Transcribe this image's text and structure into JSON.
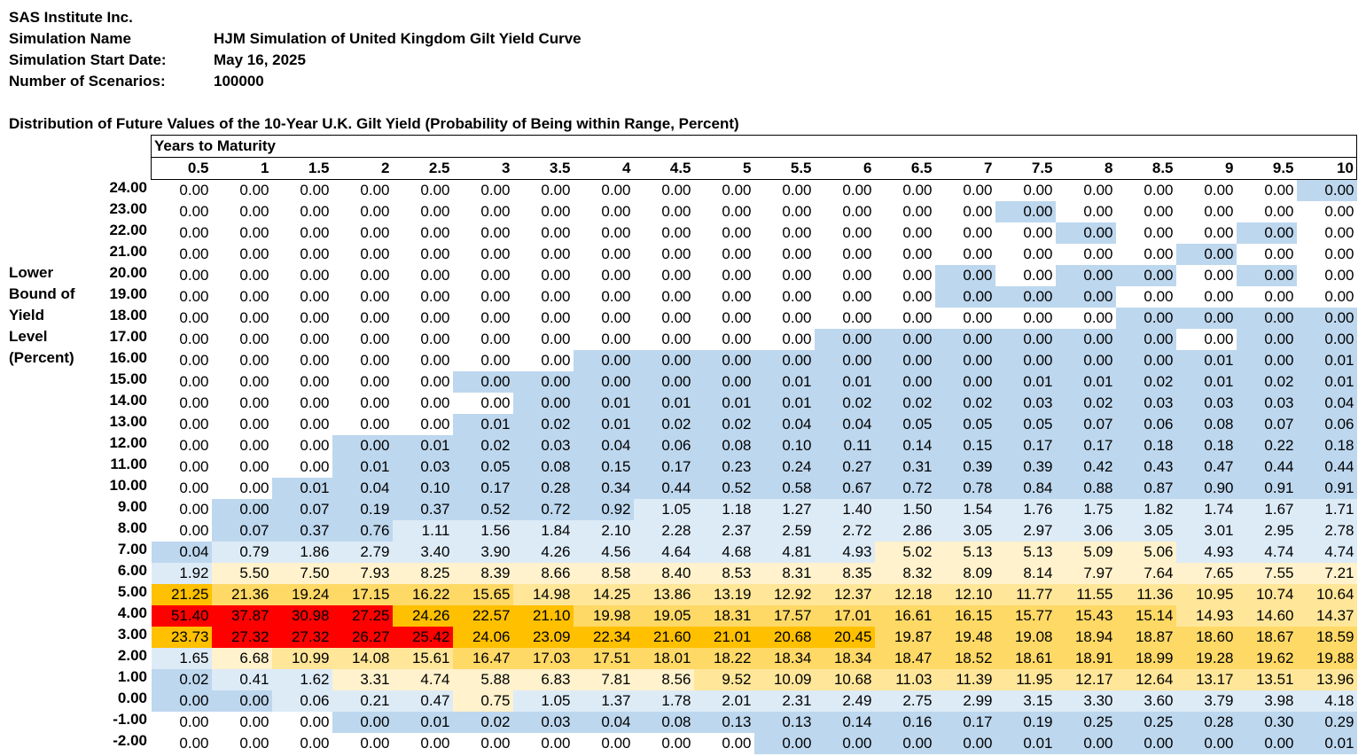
{
  "header": {
    "company": "SAS Institute Inc.",
    "sim_name_label": "Simulation Name",
    "sim_name_value": "HJM Simulation of United Kingdom Gilt Yield Curve",
    "start_label": "Simulation Start Date:",
    "start_value": "May 16, 2025",
    "scenarios_label": "Number of Scenarios:",
    "scenarios_value": "100000"
  },
  "table": {
    "title": "Distribution of Future Values of the 10-Year U.K. Gilt Yield (Probability of Being within Range, Percent)",
    "years_label": "Years to Maturity",
    "row_axis_label": [
      "Lower",
      "Bound of",
      "Yield",
      "Level",
      "(Percent)"
    ],
    "columns": [
      "0.5",
      "1",
      "1.5",
      "2",
      "2.5",
      "3",
      "3.5",
      "4",
      "4.5",
      "5",
      "5.5",
      "6",
      "6.5",
      "7",
      "7.5",
      "8",
      "8.5",
      "9",
      "9.5",
      "10"
    ],
    "rows": [
      {
        "lb": "24.00",
        "v": [
          "0.00",
          "0.00",
          "0.00",
          "0.00",
          "0.00",
          "0.00",
          "0.00",
          "0.00",
          "0.00",
          "0.00",
          "0.00",
          "0.00",
          "0.00",
          "0.00",
          "0.00",
          "0.00",
          "0.00",
          "0.00",
          "0.00",
          "0.00"
        ]
      },
      {
        "lb": "23.00",
        "v": [
          "0.00",
          "0.00",
          "0.00",
          "0.00",
          "0.00",
          "0.00",
          "0.00",
          "0.00",
          "0.00",
          "0.00",
          "0.00",
          "0.00",
          "0.00",
          "0.00",
          "0.00",
          "0.00",
          "0.00",
          "0.00",
          "0.00",
          "0.00"
        ]
      },
      {
        "lb": "22.00",
        "v": [
          "0.00",
          "0.00",
          "0.00",
          "0.00",
          "0.00",
          "0.00",
          "0.00",
          "0.00",
          "0.00",
          "0.00",
          "0.00",
          "0.00",
          "0.00",
          "0.00",
          "0.00",
          "0.00",
          "0.00",
          "0.00",
          "0.00",
          "0.00"
        ]
      },
      {
        "lb": "21.00",
        "v": [
          "0.00",
          "0.00",
          "0.00",
          "0.00",
          "0.00",
          "0.00",
          "0.00",
          "0.00",
          "0.00",
          "0.00",
          "0.00",
          "0.00",
          "0.00",
          "0.00",
          "0.00",
          "0.00",
          "0.00",
          "0.00",
          "0.00",
          "0.00"
        ]
      },
      {
        "lb": "20.00",
        "v": [
          "0.00",
          "0.00",
          "0.00",
          "0.00",
          "0.00",
          "0.00",
          "0.00",
          "0.00",
          "0.00",
          "0.00",
          "0.00",
          "0.00",
          "0.00",
          "0.00",
          "0.00",
          "0.00",
          "0.00",
          "0.00",
          "0.00",
          "0.00"
        ]
      },
      {
        "lb": "19.00",
        "v": [
          "0.00",
          "0.00",
          "0.00",
          "0.00",
          "0.00",
          "0.00",
          "0.00",
          "0.00",
          "0.00",
          "0.00",
          "0.00",
          "0.00",
          "0.00",
          "0.00",
          "0.00",
          "0.00",
          "0.00",
          "0.00",
          "0.00",
          "0.00"
        ]
      },
      {
        "lb": "18.00",
        "v": [
          "0.00",
          "0.00",
          "0.00",
          "0.00",
          "0.00",
          "0.00",
          "0.00",
          "0.00",
          "0.00",
          "0.00",
          "0.00",
          "0.00",
          "0.00",
          "0.00",
          "0.00",
          "0.00",
          "0.00",
          "0.00",
          "0.00",
          "0.00"
        ]
      },
      {
        "lb": "17.00",
        "v": [
          "0.00",
          "0.00",
          "0.00",
          "0.00",
          "0.00",
          "0.00",
          "0.00",
          "0.00",
          "0.00",
          "0.00",
          "0.00",
          "0.00",
          "0.00",
          "0.00",
          "0.00",
          "0.00",
          "0.00",
          "0.00",
          "0.00",
          "0.00"
        ]
      },
      {
        "lb": "16.00",
        "v": [
          "0.00",
          "0.00",
          "0.00",
          "0.00",
          "0.00",
          "0.00",
          "0.00",
          "0.00",
          "0.00",
          "0.00",
          "0.00",
          "0.00",
          "0.00",
          "0.00",
          "0.00",
          "0.00",
          "0.00",
          "0.01",
          "0.00",
          "0.01"
        ]
      },
      {
        "lb": "15.00",
        "v": [
          "0.00",
          "0.00",
          "0.00",
          "0.00",
          "0.00",
          "0.00",
          "0.00",
          "0.00",
          "0.00",
          "0.00",
          "0.01",
          "0.01",
          "0.00",
          "0.00",
          "0.01",
          "0.01",
          "0.02",
          "0.01",
          "0.02",
          "0.01"
        ]
      },
      {
        "lb": "14.00",
        "v": [
          "0.00",
          "0.00",
          "0.00",
          "0.00",
          "0.00",
          "0.00",
          "0.00",
          "0.01",
          "0.01",
          "0.01",
          "0.01",
          "0.02",
          "0.02",
          "0.02",
          "0.03",
          "0.02",
          "0.03",
          "0.03",
          "0.03",
          "0.04"
        ]
      },
      {
        "lb": "13.00",
        "v": [
          "0.00",
          "0.00",
          "0.00",
          "0.00",
          "0.00",
          "0.01",
          "0.02",
          "0.01",
          "0.02",
          "0.02",
          "0.04",
          "0.04",
          "0.05",
          "0.05",
          "0.05",
          "0.07",
          "0.06",
          "0.08",
          "0.07",
          "0.06"
        ]
      },
      {
        "lb": "12.00",
        "v": [
          "0.00",
          "0.00",
          "0.00",
          "0.00",
          "0.01",
          "0.02",
          "0.03",
          "0.04",
          "0.06",
          "0.08",
          "0.10",
          "0.11",
          "0.14",
          "0.15",
          "0.17",
          "0.17",
          "0.18",
          "0.18",
          "0.22",
          "0.18"
        ]
      },
      {
        "lb": "11.00",
        "v": [
          "0.00",
          "0.00",
          "0.00",
          "0.01",
          "0.03",
          "0.05",
          "0.08",
          "0.15",
          "0.17",
          "0.23",
          "0.24",
          "0.27",
          "0.31",
          "0.39",
          "0.39",
          "0.42",
          "0.43",
          "0.47",
          "0.44",
          "0.44"
        ]
      },
      {
        "lb": "10.00",
        "v": [
          "0.00",
          "0.00",
          "0.01",
          "0.04",
          "0.10",
          "0.17",
          "0.28",
          "0.34",
          "0.44",
          "0.52",
          "0.58",
          "0.67",
          "0.72",
          "0.78",
          "0.84",
          "0.88",
          "0.87",
          "0.90",
          "0.91",
          "0.91"
        ]
      },
      {
        "lb": "9.00",
        "v": [
          "0.00",
          "0.00",
          "0.07",
          "0.19",
          "0.37",
          "0.52",
          "0.72",
          "0.92",
          "1.05",
          "1.18",
          "1.27",
          "1.40",
          "1.50",
          "1.54",
          "1.76",
          "1.75",
          "1.82",
          "1.74",
          "1.67",
          "1.71"
        ]
      },
      {
        "lb": "8.00",
        "v": [
          "0.00",
          "0.07",
          "0.37",
          "0.76",
          "1.11",
          "1.56",
          "1.84",
          "2.10",
          "2.28",
          "2.37",
          "2.59",
          "2.72",
          "2.86",
          "3.05",
          "2.97",
          "3.06",
          "3.05",
          "3.01",
          "2.95",
          "2.78"
        ]
      },
      {
        "lb": "7.00",
        "v": [
          "0.04",
          "0.79",
          "1.86",
          "2.79",
          "3.40",
          "3.90",
          "4.26",
          "4.56",
          "4.64",
          "4.68",
          "4.81",
          "4.93",
          "5.02",
          "5.13",
          "5.13",
          "5.09",
          "5.06",
          "4.93",
          "4.74",
          "4.74"
        ]
      },
      {
        "lb": "6.00",
        "v": [
          "1.92",
          "5.50",
          "7.50",
          "7.93",
          "8.25",
          "8.39",
          "8.66",
          "8.58",
          "8.40",
          "8.53",
          "8.31",
          "8.35",
          "8.32",
          "8.09",
          "8.14",
          "7.97",
          "7.64",
          "7.65",
          "7.55",
          "7.21"
        ]
      },
      {
        "lb": "5.00",
        "v": [
          "21.25",
          "21.36",
          "19.24",
          "17.15",
          "16.22",
          "15.65",
          "14.98",
          "14.25",
          "13.86",
          "13.19",
          "12.92",
          "12.37",
          "12.18",
          "12.10",
          "11.77",
          "11.55",
          "11.36",
          "10.95",
          "10.74",
          "10.64"
        ]
      },
      {
        "lb": "4.00",
        "v": [
          "51.40",
          "37.87",
          "30.98",
          "27.25",
          "24.26",
          "22.57",
          "21.10",
          "19.98",
          "19.05",
          "18.31",
          "17.57",
          "17.01",
          "16.61",
          "16.15",
          "15.77",
          "15.43",
          "15.14",
          "14.93",
          "14.60",
          "14.37"
        ]
      },
      {
        "lb": "3.00",
        "v": [
          "23.73",
          "27.32",
          "27.32",
          "26.27",
          "25.42",
          "24.06",
          "23.09",
          "22.34",
          "21.60",
          "21.01",
          "20.68",
          "20.45",
          "19.87",
          "19.48",
          "19.08",
          "18.94",
          "18.87",
          "18.60",
          "18.67",
          "18.59"
        ]
      },
      {
        "lb": "2.00",
        "v": [
          "1.65",
          "6.68",
          "10.99",
          "14.08",
          "15.61",
          "16.47",
          "17.03",
          "17.51",
          "18.01",
          "18.22",
          "18.34",
          "18.34",
          "18.47",
          "18.52",
          "18.61",
          "18.91",
          "18.99",
          "19.28",
          "19.62",
          "19.88"
        ]
      },
      {
        "lb": "1.00",
        "v": [
          "0.02",
          "0.41",
          "1.62",
          "3.31",
          "4.74",
          "5.88",
          "6.83",
          "7.81",
          "8.56",
          "9.52",
          "10.09",
          "10.68",
          "11.03",
          "11.39",
          "11.95",
          "12.17",
          "12.64",
          "13.17",
          "13.51",
          "13.96"
        ]
      },
      {
        "lb": "0.00",
        "v": [
          "0.00",
          "0.00",
          "0.06",
          "0.21",
          "0.47",
          "0.75",
          "1.05",
          "1.37",
          "1.78",
          "2.01",
          "2.31",
          "2.49",
          "2.75",
          "2.99",
          "3.15",
          "3.30",
          "3.60",
          "3.79",
          "3.98",
          "4.18"
        ]
      },
      {
        "lb": "-1.00",
        "v": [
          "0.00",
          "0.00",
          "0.00",
          "0.00",
          "0.01",
          "0.02",
          "0.03",
          "0.04",
          "0.08",
          "0.13",
          "0.13",
          "0.14",
          "0.16",
          "0.17",
          "0.19",
          "0.25",
          "0.25",
          "0.28",
          "0.30",
          "0.29"
        ]
      },
      {
        "lb": "-2.00",
        "v": [
          "0.00",
          "0.00",
          "0.00",
          "0.00",
          "0.00",
          "0.00",
          "0.00",
          "0.00",
          "0.00",
          "0.00",
          "0.00",
          "0.00",
          "0.00",
          "0.00",
          "0.01",
          "0.00",
          "0.00",
          "0.00",
          "0.00",
          "0.01"
        ]
      }
    ],
    "colors": {
      "blue": "#bdd7ee",
      "light_blue": "#ddebf7",
      "cream": "#fff2cc",
      "light_gold": "#ffe699",
      "gold": "#ffd966",
      "orange": "#ffc000",
      "red": "#ff0000",
      "white": "#ffffff"
    },
    "cell_colors": [
      "WWWWWWWWWWWWWWWWWWWB",
      "WWWWWWWWWWWWWWBWWWWW",
      "WWWWWWWWWWWWWWWBWWBW",
      "WWWWWWWWWWWWWWWWWBWW",
      "WWWWWWWWWWWWWBWBBWBW",
      "WWWWWWWWWWWWWBBBWWWW",
      "WWWWWWWWWWWWWWWWBBBB",
      "WWWWWWWWWWWBBBBBBWBB",
      "WWWWWWWBBBBBBBBBBBBB",
      "WWWWWBBBBBBBBBBBBBBB",
      "WWWWWWBBBBBBBBBBBBBB",
      "WWWWWBBBBBBBBBBBBBBB",
      "WWWBBBBBBBBBBBBBBBBB",
      "WWWBBBBBBBBBBBBBBBBB",
      "WWBBBBBBBBBBBBBBBBBB",
      "WBBBBBBBLLLLLLLLLLLL",
      "WBBBLLLLLLLLLLLLLLLL",
      "BLLLLLLLLLLLCCCCCLLL",
      "LCCCCCCCCCCCCCCCCCCC",
      "OGGGGGYYYYYYYYYYYYYY",
      "RRRROOOGGGGGGGGGGYYY",
      "ORRRROOOOOOOGGGGGGGG",
      "LCYYYGGGGGGGGGGGGGGG",
      "BLLCCCCCCYYYYYYYYYYY",
      "BBLLLCLLLLLLLLLLLLLL",
      "WWWBBBBBBBBBBBBBBBBB",
      "WWWWWWWWWWBBBBBBBBBB"
    ]
  }
}
